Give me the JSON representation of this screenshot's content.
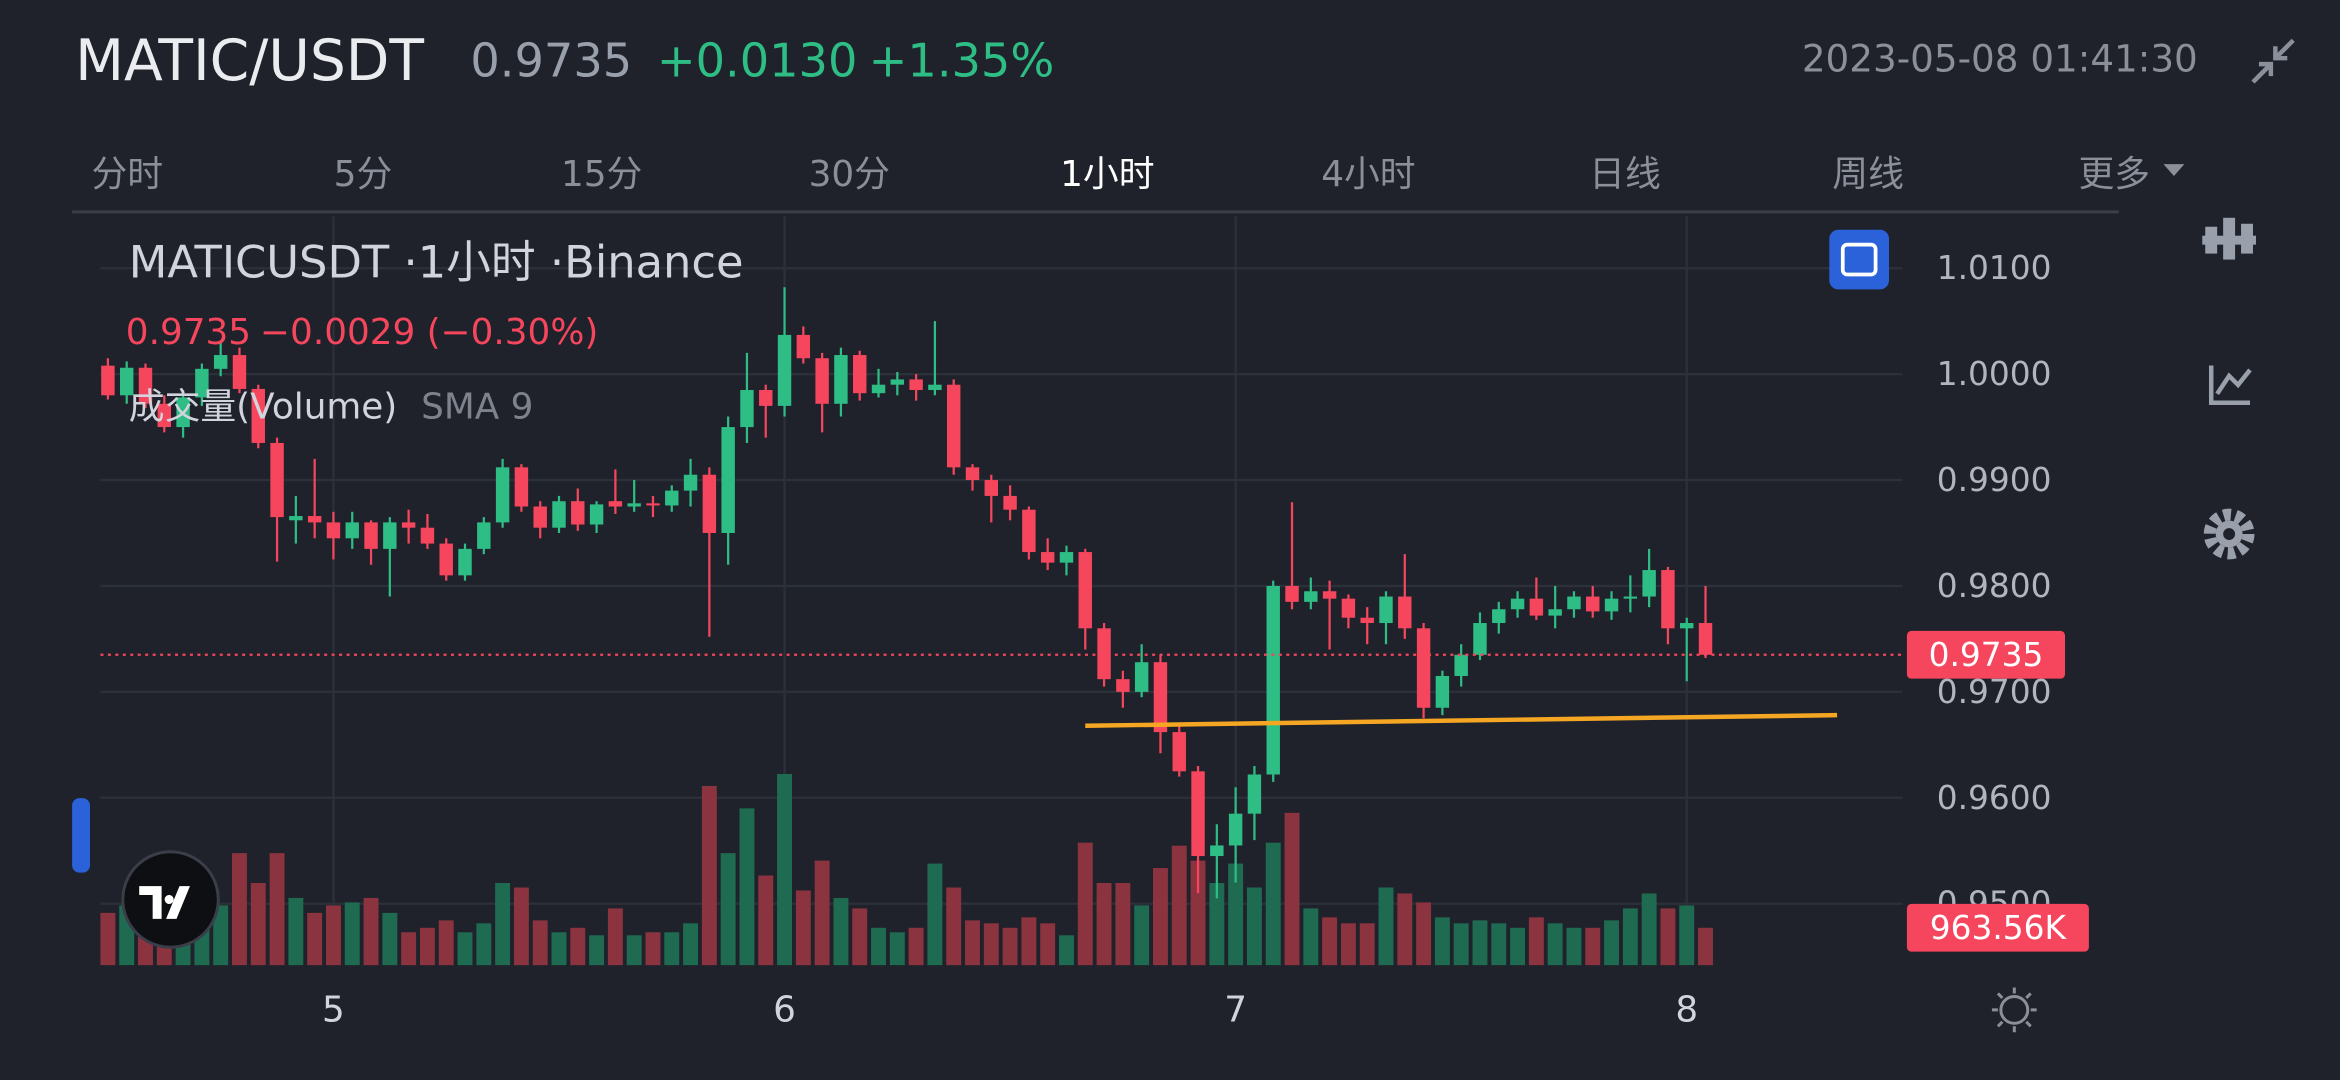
{
  "header": {
    "symbol": "MATIC/USDT",
    "price": "0.9735",
    "change": "+0.0130",
    "change_pct": "+1.35%",
    "datetime": "2023-05-08 01:41:30"
  },
  "tabs": {
    "items": [
      "分时",
      "5分",
      "15分",
      "30分",
      "1小时",
      "4小时",
      "日线",
      "周线",
      "更多"
    ],
    "active": 4
  },
  "legend": {
    "title": "MATICUSDT ·1小时 ·Binance",
    "close": "0.9735",
    "change": "−0.0029 (−0.30%)",
    "volume_name": "成交量(Volume)",
    "volume_sma": "SMA 9"
  },
  "chart_data": {
    "type": "candlestick",
    "up_color": "#2ebd85",
    "down_color": "#f6465d",
    "grid": true,
    "categories": [
      null,
      null,
      null,
      null,
      null,
      null,
      null,
      null,
      null,
      null,
      null,
      null,
      "5",
      null,
      null,
      null,
      null,
      null,
      null,
      null,
      null,
      null,
      null,
      null,
      null,
      null,
      null,
      null,
      null,
      null,
      null,
      null,
      null,
      null,
      null,
      null,
      "6",
      null,
      null,
      null,
      null,
      null,
      null,
      null,
      null,
      null,
      null,
      null,
      null,
      null,
      null,
      null,
      null,
      null,
      null,
      null,
      null,
      null,
      null,
      null,
      "7",
      null,
      null,
      null,
      null,
      null,
      null,
      null,
      null,
      null,
      null,
      null,
      null,
      null,
      null,
      null,
      null,
      null,
      null,
      null,
      null,
      null,
      null,
      null,
      "8",
      null
    ],
    "open": [
      1.0008,
      0.998,
      1.0006,
      0.9972,
      0.995,
      0.9978,
      1.0005,
      1.0018,
      0.9986,
      0.9935,
      0.9862,
      0.9866,
      0.986,
      0.9845,
      0.986,
      0.9835,
      0.986,
      0.9855,
      0.984,
      0.981,
      0.9835,
      0.986,
      0.9912,
      0.9875,
      0.9855,
      0.988,
      0.9858,
      0.988,
      0.9875,
      0.9878,
      0.9876,
      0.989,
      0.9905,
      0.985,
      0.995,
      0.9985,
      0.997,
      1.0037,
      1.0015,
      0.9972,
      1.0018,
      0.9982,
      0.999,
      0.9995,
      0.9985,
      0.999,
      0.9912,
      0.99,
      0.9885,
      0.9872,
      0.9832,
      0.9822,
      0.9832,
      0.976,
      0.9712,
      0.97,
      0.9728,
      0.9662,
      0.9625,
      0.9545,
      0.9555,
      0.9585,
      0.9622,
      0.98,
      0.9785,
      0.9795,
      0.9788,
      0.977,
      0.9765,
      0.979,
      0.976,
      0.9685,
      0.9715,
      0.9735,
      0.9765,
      0.9778,
      0.9788,
      0.9772,
      0.9778,
      0.979,
      0.9776,
      0.9788,
      0.979,
      0.9815,
      0.976,
      0.9765
    ],
    "high": [
      1.0015,
      1.0012,
      1.001,
      0.998,
      0.9985,
      1.001,
      1.003,
      1.0025,
      0.999,
      0.994,
      0.9885,
      0.992,
      0.987,
      0.987,
      0.9862,
      0.9865,
      0.9872,
      0.9868,
      0.9845,
      0.984,
      0.9865,
      0.992,
      0.9915,
      0.988,
      0.9885,
      0.9892,
      0.988,
      0.991,
      0.99,
      0.9885,
      0.9895,
      0.992,
      0.9912,
      0.996,
      1.002,
      0.999,
      1.0082,
      1.0045,
      1.002,
      1.0025,
      1.0022,
      1.0005,
      1.0002,
      1.0,
      1.005,
      0.9995,
      0.9915,
      0.9905,
      0.9895,
      0.9875,
      0.9845,
      0.9838,
      0.9835,
      0.9765,
      0.972,
      0.9745,
      0.9735,
      0.967,
      0.963,
      0.9575,
      0.961,
      0.963,
      0.9805,
      0.9879,
      0.9808,
      0.9805,
      0.9792,
      0.978,
      0.9795,
      0.983,
      0.9765,
      0.972,
      0.9745,
      0.9775,
      0.9785,
      0.9795,
      0.9808,
      0.98,
      0.9795,
      0.98,
      0.9795,
      0.981,
      0.9835,
      0.9818,
      0.977,
      0.98
    ],
    "low": [
      0.9976,
      0.9972,
      0.9968,
      0.9945,
      0.994,
      0.997,
      0.9998,
      0.9982,
      0.993,
      0.9823,
      0.984,
      0.9845,
      0.9825,
      0.9835,
      0.982,
      0.979,
      0.984,
      0.9835,
      0.9805,
      0.9805,
      0.983,
      0.9855,
      0.987,
      0.9845,
      0.985,
      0.9852,
      0.985,
      0.9868,
      0.987,
      0.9865,
      0.987,
      0.9875,
      0.9752,
      0.982,
      0.9935,
      0.994,
      0.996,
      1.001,
      0.9945,
      0.996,
      0.9975,
      0.9978,
      0.998,
      0.9975,
      0.998,
      0.9905,
      0.989,
      0.986,
      0.9862,
      0.9825,
      0.9815,
      0.981,
      0.974,
      0.9705,
      0.9685,
      0.9695,
      0.9642,
      0.962,
      0.951,
      0.9505,
      0.952,
      0.956,
      0.9615,
      0.9778,
      0.9778,
      0.974,
      0.976,
      0.9745,
      0.9745,
      0.975,
      0.9675,
      0.9678,
      0.9705,
      0.973,
      0.9755,
      0.977,
      0.9768,
      0.976,
      0.977,
      0.977,
      0.9768,
      0.9775,
      0.978,
      0.9745,
      0.971,
      0.9732
    ],
    "close": [
      0.998,
      1.0006,
      0.9972,
      0.995,
      0.9978,
      1.0005,
      1.0018,
      0.9986,
      0.9935,
      0.9865,
      0.9866,
      0.986,
      0.9845,
      0.986,
      0.9835,
      0.986,
      0.9855,
      0.984,
      0.981,
      0.9835,
      0.986,
      0.9912,
      0.9875,
      0.9855,
      0.988,
      0.9858,
      0.9877,
      0.9875,
      0.9878,
      0.9876,
      0.989,
      0.9905,
      0.985,
      0.995,
      0.9985,
      0.997,
      1.0037,
      1.0015,
      0.9972,
      1.0018,
      0.9982,
      0.999,
      0.9995,
      0.9985,
      0.999,
      0.9912,
      0.99,
      0.9885,
      0.9872,
      0.9832,
      0.9822,
      0.9832,
      0.976,
      0.9712,
      0.97,
      0.9728,
      0.9662,
      0.9625,
      0.9545,
      0.9555,
      0.9585,
      0.9622,
      0.98,
      0.9785,
      0.9795,
      0.9788,
      0.977,
      0.9765,
      0.979,
      0.976,
      0.9685,
      0.9715,
      0.9735,
      0.9765,
      0.9778,
      0.9788,
      0.9772,
      0.9778,
      0.979,
      0.9776,
      0.9788,
      0.979,
      0.9815,
      0.976,
      0.9765,
      0.9735
    ],
    "ylim": [
      0.9442,
      1.0149
    ],
    "yticks": [
      {
        "value": 0.95,
        "label": "0.9500"
      },
      {
        "value": 0.96,
        "label": "0.9600"
      },
      {
        "value": 0.97,
        "label": "0.9700"
      },
      {
        "value": 0.98,
        "label": "0.9800"
      },
      {
        "value": 0.99,
        "label": "0.9900"
      },
      {
        "value": 1.0,
        "label": "1.0000"
      },
      {
        "value": 1.01,
        "label": "1.0100"
      }
    ],
    "volume": {
      "ylim": [
        0,
        5000000
      ],
      "up_color": "#1f6b52",
      "down_color": "#8c3340",
      "last_label": "963.56K",
      "values": [
        1347500,
        1540000,
        1155000,
        1732500,
        1540000,
        2117500,
        1540000,
        2887500,
        2117500,
        2887500,
        1732500,
        1347500,
        1540000,
        1617000,
        1732500,
        1347500,
        847000,
        962500,
        1155000,
        847000,
        1078000,
        2117500,
        2002000,
        1155000,
        847000,
        962500,
        770000,
        1463000,
        770000,
        847000,
        847000,
        1078000,
        4620000,
        2887500,
        4042500,
        2310000,
        4928000,
        1925000,
        2695000,
        1732500,
        1463000,
        962500,
        847000,
        962500,
        2618000,
        2002000,
        1155000,
        1078000,
        962500,
        1232000,
        1078000,
        770000,
        3157000,
        2117500,
        2117500,
        1540000,
        2502500,
        3080000,
        2695000,
        2117500,
        2618000,
        2002000,
        3157000,
        3927000,
        1463000,
        1232000,
        1078000,
        1078000,
        2002000,
        1848000,
        1617000,
        1232000,
        1078000,
        1155000,
        1078000,
        962500,
        1232000,
        1078000,
        962500,
        962500,
        1155000,
        1463000,
        1848000,
        1463000,
        1540000,
        963560
      ]
    },
    "last_price_line": {
      "color": "#f6465d"
    },
    "trendline": {
      "start": [
        52,
        0.9668
      ],
      "end": [
        92,
        0.9678
      ],
      "color": "#f5a623"
    }
  }
}
